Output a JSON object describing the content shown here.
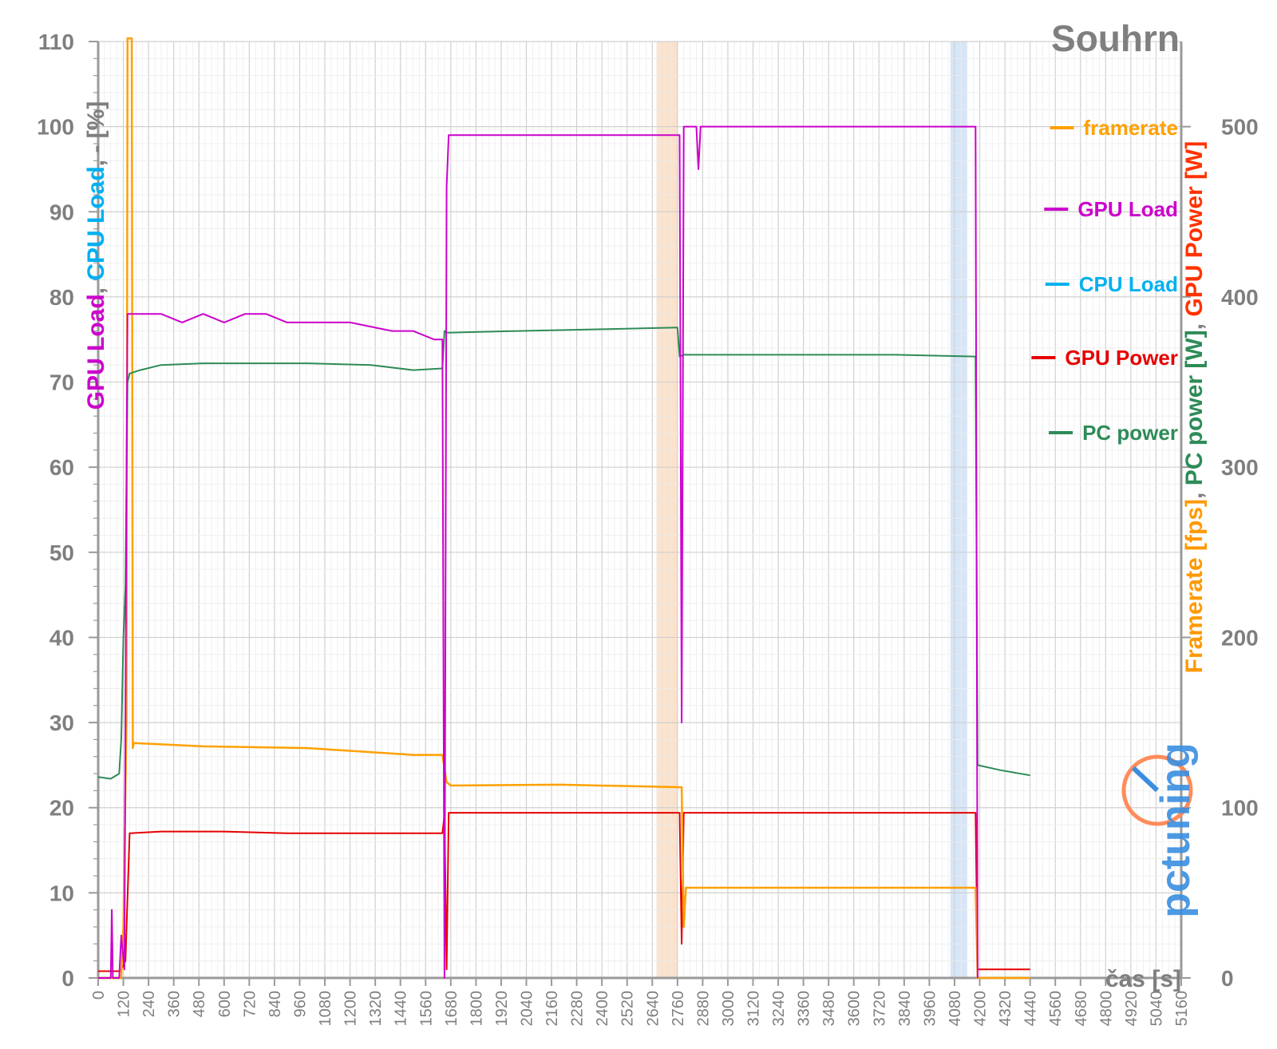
{
  "chart_data": {
    "type": "line",
    "title": "Souhrn",
    "xlabel": "čas [s]",
    "ylabel_left_parts": [
      {
        "text": "GPU Load",
        "color": "#cc00cc"
      },
      {
        "text": ", ",
        "color": "#7f7f7f"
      },
      {
        "text": "CPU Load",
        "color": "#00b0f0"
      },
      {
        "text": ", - [%]",
        "color": "#7f7f7f"
      }
    ],
    "ylabel_right_parts": [
      {
        "text": "Framerate [fps]",
        "color": "#ff9900"
      },
      {
        "text": ", ",
        "color": "#7f7f7f"
      },
      {
        "text": "PC power [W]",
        "color": "#2e8b57"
      },
      {
        "text": ", ",
        "color": "#7f7f7f"
      },
      {
        "text": "GPU Power [W]",
        "color": "#ff3300"
      }
    ],
    "xlim": [
      0,
      5160
    ],
    "x_ticks": [
      0,
      120,
      240,
      360,
      480,
      600,
      720,
      840,
      960,
      1080,
      1200,
      1320,
      1440,
      1560,
      1680,
      1800,
      1920,
      2040,
      2160,
      2280,
      2400,
      2520,
      2640,
      2760,
      2880,
      3000,
      3120,
      3240,
      3360,
      3480,
      3600,
      3720,
      3840,
      3960,
      4080,
      4200,
      4320,
      4440,
      4560,
      4680,
      4800,
      4920,
      5040,
      5160
    ],
    "y_left_lim": [
      0,
      110
    ],
    "y_left_ticks": [
      0,
      10,
      20,
      30,
      40,
      50,
      60,
      70,
      80,
      90,
      100,
      110
    ],
    "y_right_lim": [
      0,
      550
    ],
    "y_right_ticks": [
      0,
      100,
      200,
      300,
      400,
      500
    ],
    "grid": true,
    "highlight_bands": [
      {
        "x": [
          2660,
          2760
        ],
        "color": "#fbe2cc"
      },
      {
        "x": [
          4060,
          4140
        ],
        "color": "#d6e6f8"
      }
    ],
    "legend_position": "right",
    "series": [
      {
        "name": "framerate",
        "color": "#ffa000",
        "axis": "right",
        "points": [
          [
            0,
            0
          ],
          [
            110,
            0
          ],
          [
            120,
            30
          ],
          [
            135,
            150
          ],
          [
            140,
            600
          ],
          [
            160,
            600
          ],
          [
            165,
            135
          ],
          [
            170,
            138
          ],
          [
            500,
            136
          ],
          [
            1000,
            135
          ],
          [
            1500,
            131
          ],
          [
            1640,
            131
          ],
          [
            1660,
            115
          ],
          [
            1680,
            113
          ],
          [
            2200,
            113.5
          ],
          [
            2780,
            112
          ],
          [
            2790,
            30
          ],
          [
            2800,
            53
          ],
          [
            3400,
            53
          ],
          [
            4180,
            53
          ],
          [
            4190,
            0
          ],
          [
            4440,
            0
          ]
        ]
      },
      {
        "name": "GPU Load",
        "color": "#cc00cc",
        "axis": "left",
        "points": [
          [
            0,
            0
          ],
          [
            60,
            0
          ],
          [
            65,
            8
          ],
          [
            70,
            0
          ],
          [
            100,
            0
          ],
          [
            110,
            5
          ],
          [
            125,
            1
          ],
          [
            135,
            60
          ],
          [
            140,
            78
          ],
          [
            200,
            78
          ],
          [
            300,
            78
          ],
          [
            400,
            77
          ],
          [
            500,
            78
          ],
          [
            600,
            77
          ],
          [
            700,
            78
          ],
          [
            800,
            78
          ],
          [
            900,
            77
          ],
          [
            1000,
            77
          ],
          [
            1200,
            77
          ],
          [
            1400,
            76
          ],
          [
            1500,
            76
          ],
          [
            1600,
            75
          ],
          [
            1640,
            75
          ],
          [
            1650,
            0
          ],
          [
            1660,
            93
          ],
          [
            1670,
            99
          ],
          [
            2000,
            99
          ],
          [
            2400,
            99
          ],
          [
            2770,
            99
          ],
          [
            2780,
            30
          ],
          [
            2790,
            100
          ],
          [
            2850,
            100
          ],
          [
            2860,
            95
          ],
          [
            2870,
            100
          ],
          [
            3400,
            100
          ],
          [
            4180,
            100
          ],
          [
            4190,
            0
          ]
        ]
      },
      {
        "name": "CPU Load",
        "color": "#00b0f0",
        "axis": "left",
        "points": []
      },
      {
        "name": "GPU Power",
        "color": "#e60000",
        "axis": "right",
        "points": [
          [
            0,
            4
          ],
          [
            100,
            4
          ],
          [
            110,
            5
          ],
          [
            130,
            10
          ],
          [
            150,
            85
          ],
          [
            300,
            86
          ],
          [
            600,
            86
          ],
          [
            900,
            85
          ],
          [
            1200,
            85
          ],
          [
            1500,
            85
          ],
          [
            1640,
            85
          ],
          [
            1650,
            96
          ],
          [
            1660,
            5
          ],
          [
            1670,
            97
          ],
          [
            2000,
            97
          ],
          [
            2400,
            97
          ],
          [
            2770,
            97
          ],
          [
            2780,
            20
          ],
          [
            2790,
            97
          ],
          [
            3400,
            97
          ],
          [
            4180,
            97
          ],
          [
            4190,
            5
          ],
          [
            4440,
            5
          ]
        ]
      },
      {
        "name": "PC power",
        "color": "#2e8b57",
        "axis": "right",
        "points": [
          [
            0,
            118
          ],
          [
            60,
            117
          ],
          [
            100,
            120
          ],
          [
            110,
            140
          ],
          [
            120,
            200
          ],
          [
            130,
            230
          ],
          [
            140,
            350
          ],
          [
            150,
            355
          ],
          [
            200,
            357
          ],
          [
            300,
            360
          ],
          [
            500,
            361
          ],
          [
            800,
            361
          ],
          [
            1000,
            361
          ],
          [
            1300,
            360
          ],
          [
            1500,
            357
          ],
          [
            1640,
            358
          ],
          [
            1650,
            380
          ],
          [
            1660,
            379
          ],
          [
            2000,
            380
          ],
          [
            2400,
            381
          ],
          [
            2760,
            382
          ],
          [
            2770,
            365
          ],
          [
            2790,
            366
          ],
          [
            3000,
            366
          ],
          [
            3400,
            366
          ],
          [
            3800,
            366
          ],
          [
            4180,
            365
          ],
          [
            4190,
            125
          ],
          [
            4300,
            122
          ],
          [
            4440,
            119
          ]
        ]
      }
    ]
  },
  "logo": {
    "text": "pctuning",
    "color_pc": "#ff8c5a",
    "color_tuning": "#3a8ee0"
  }
}
